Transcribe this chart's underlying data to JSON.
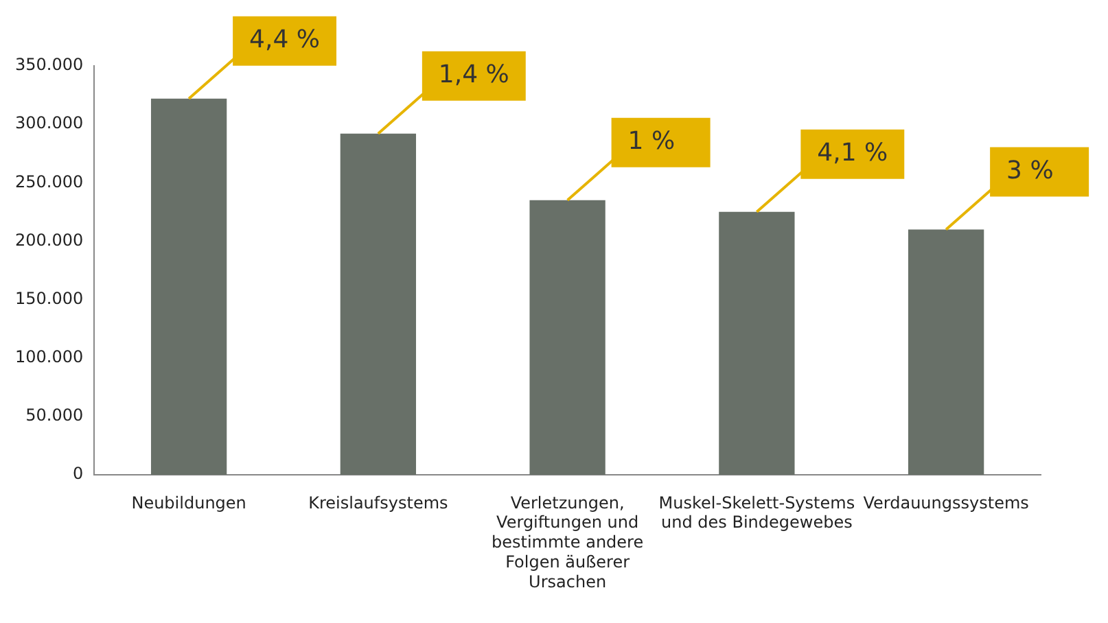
{
  "chart_data": {
    "type": "bar",
    "categories": [
      "Neubildungen",
      "Kreislaufsystems",
      "Verletzungen, Vergiftungen und bestimmte andere Folgen äußerer Ursachen",
      "Muskel-Skelett-Systems und des Bindegewebes",
      "Verdauungssystems"
    ],
    "values": [
      322000,
      292000,
      235000,
      225000,
      210000
    ],
    "color": "#687068",
    "ylim": [
      0,
      350000
    ],
    "yticks": [
      {
        "value": 0,
        "label": "0"
      },
      {
        "value": 50000,
        "label": "50.000"
      },
      {
        "value": 100000,
        "label": "100.000"
      },
      {
        "value": 150000,
        "label": "150.000"
      },
      {
        "value": 200000,
        "label": "200.000"
      },
      {
        "value": 250000,
        "label": "250.000"
      },
      {
        "value": 300000,
        "label": "300.000"
      },
      {
        "value": 350000,
        "label": "350.000"
      }
    ],
    "grid": false,
    "legend": false,
    "annotations": [
      {
        "text": "4,4 %",
        "x": "Neubildungen",
        "y": 322000
      },
      {
        "text": "1,4 %",
        "x": "Kreislaufsystems",
        "y": 292000
      },
      {
        "text": "1 %",
        "x": "Verletzungen, Vergiftungen und bestimmte andere Folgen äußerer Ursachen",
        "y": 235000
      },
      {
        "text": "4,1 %",
        "x": "Muskel-Skelett-Systems und des Bindegewebes",
        "y": 225000
      },
      {
        "text": "3 %",
        "x": "Verdauungssystems",
        "y": 210000
      }
    ]
  }
}
